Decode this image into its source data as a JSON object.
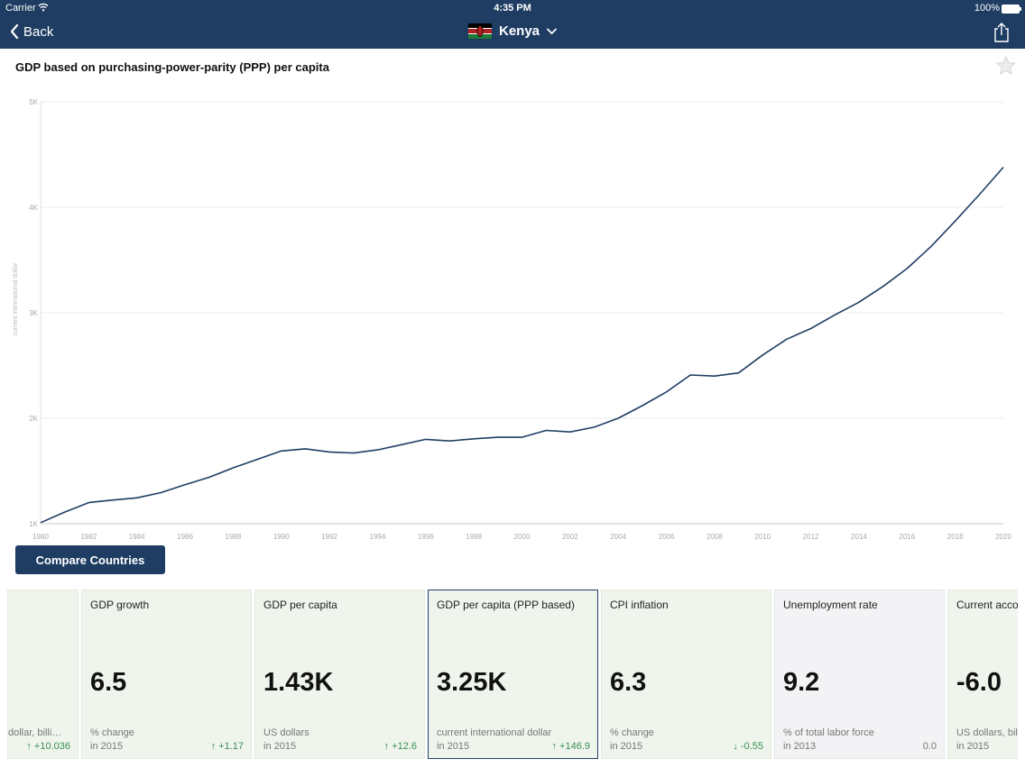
{
  "status_bar": {
    "carrier": "Carrier",
    "time": "4:35 PM",
    "battery": "100%"
  },
  "nav": {
    "back_label": "Back",
    "country": "Kenya"
  },
  "page": {
    "title": "GDP based on purchasing-power-parity (PPP) per capita",
    "compare_label": "Compare Countries"
  },
  "chart_data": {
    "type": "line",
    "title": "GDP based on purchasing-power-parity (PPP) per capita",
    "ylabel": "current international dollar",
    "xlabel": "",
    "ylim": [
      1000,
      5000
    ],
    "xlim": [
      1980,
      2020
    ],
    "y_ticks": [
      "1K",
      "2K",
      "3K",
      "4K",
      "5K"
    ],
    "x_ticks": [
      "1980",
      "1982",
      "1984",
      "1986",
      "1988",
      "1990",
      "1992",
      "1994",
      "1996",
      "1998",
      "2000",
      "2002",
      "2004",
      "2006",
      "2008",
      "2010",
      "2012",
      "2014",
      "2016",
      "2018",
      "2020"
    ],
    "grid": true,
    "line_color": "#1f3d63",
    "x": [
      1980,
      1981,
      1982,
      1983,
      1984,
      1985,
      1986,
      1987,
      1988,
      1989,
      1990,
      1991,
      1992,
      1993,
      1994,
      1995,
      1996,
      1997,
      1998,
      1999,
      2000,
      2001,
      2002,
      2003,
      2004,
      2005,
      2006,
      2007,
      2008,
      2009,
      2010,
      2011,
      2012,
      2013,
      2014,
      2015,
      2016,
      2017,
      2018,
      2019,
      2020
    ],
    "values": [
      1010,
      1110,
      1200,
      1225,
      1245,
      1295,
      1370,
      1440,
      1530,
      1610,
      1690,
      1710,
      1680,
      1670,
      1700,
      1750,
      1800,
      1785,
      1805,
      1820,
      1820,
      1885,
      1870,
      1915,
      2000,
      2120,
      2250,
      2410,
      2400,
      2430,
      2600,
      2750,
      2850,
      2980,
      3100,
      3250,
      3420,
      3630,
      3870,
      4120,
      4380
    ]
  },
  "cards": [
    {
      "title": "",
      "value": "",
      "unit": "dollar, billi…",
      "year": "",
      "change": "↑ +10.036",
      "direction": "up"
    },
    {
      "title": "GDP growth",
      "value": "6.5",
      "unit": "% change",
      "year": "in 2015",
      "change": "↑ +1.17",
      "direction": "up"
    },
    {
      "title": "GDP per capita",
      "value": "1.43K",
      "unit": "US dollars",
      "year": "in 2015",
      "change": "↑ +12.6",
      "direction": "up"
    },
    {
      "title": "GDP per capita (PPP based)",
      "value": "3.25K",
      "unit": "current international dollar",
      "year": "in 2015",
      "change": "↑ +146.9",
      "direction": "up"
    },
    {
      "title": "CPI inflation",
      "value": "6.3",
      "unit": "% change",
      "year": "in 2015",
      "change": "↓ -0.55",
      "direction": "down"
    },
    {
      "title": "Unemployment rate",
      "value": "9.2",
      "unit": "% of total labor force",
      "year": "in 2013",
      "change": "0.0",
      "direction": "flat"
    },
    {
      "title": "Current accou",
      "value": "-6.0",
      "unit": "US dollars, bil",
      "year": "in 2015",
      "change": "",
      "direction": "flat"
    }
  ]
}
